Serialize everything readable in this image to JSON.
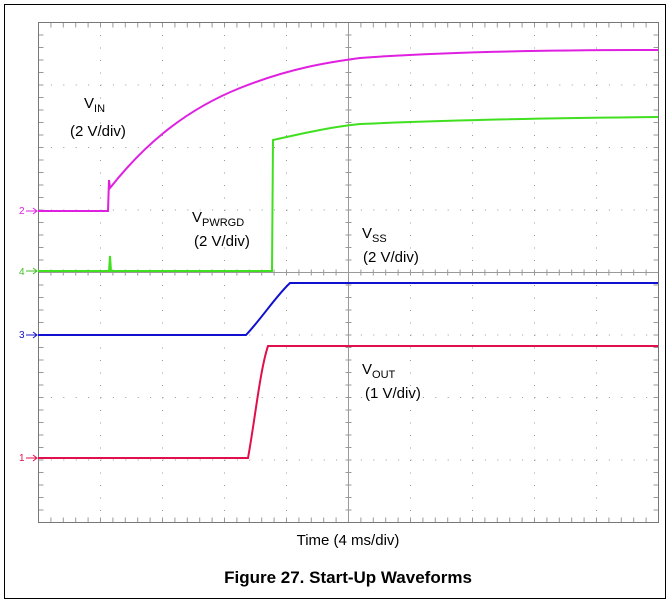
{
  "traces": [
    {
      "main": "V",
      "sub": "IN",
      "scale": "(2 V/div)"
    },
    {
      "main": "V",
      "sub": "PWRGD",
      "scale": "(2 V/div)"
    },
    {
      "main": "V",
      "sub": "SS",
      "scale": "(2 V/div)"
    },
    {
      "main": "V",
      "sub": "OUT",
      "scale": "(1 V/div)"
    }
  ],
  "channels": [
    "2",
    "4",
    "3",
    "1"
  ],
  "x_label": "Time (4 ms/div)",
  "caption": "Figure 27. Start-Up Waveforms"
}
